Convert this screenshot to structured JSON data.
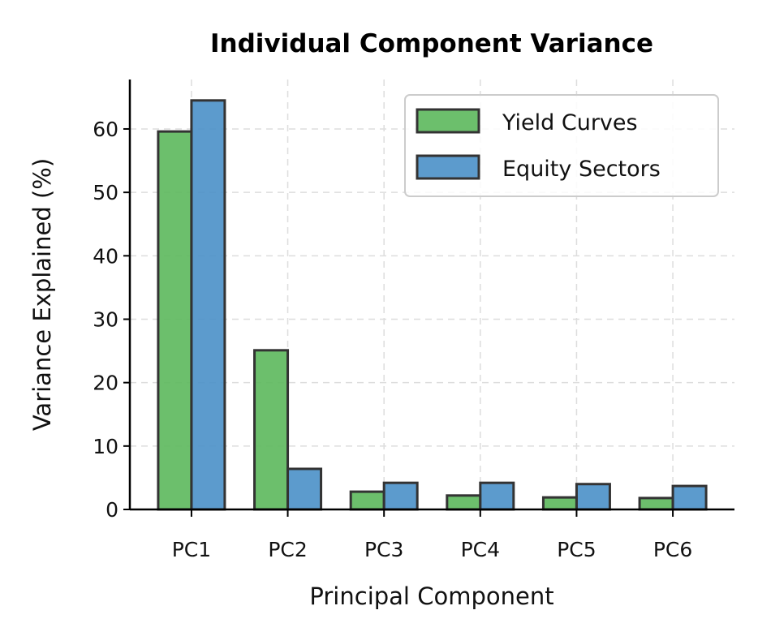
{
  "chart_data": {
    "type": "bar",
    "title": "Individual Component Variance",
    "xlabel": "Principal Component",
    "ylabel": "Variance Explained (%)",
    "categories": [
      "PC1",
      "PC2",
      "PC3",
      "PC4",
      "PC5",
      "PC6"
    ],
    "series": [
      {
        "name": "Yield Curves",
        "color": "#5cb85c",
        "values": [
          59.6,
          25.1,
          2.8,
          2.2,
          1.9,
          1.8
        ]
      },
      {
        "name": "Equity Sectors",
        "color": "#4a90c8",
        "values": [
          64.5,
          6.4,
          4.2,
          4.2,
          4.0,
          3.7
        ]
      }
    ],
    "yticks": [
      0,
      10,
      20,
      30,
      40,
      50,
      60
    ],
    "ylim": [
      0,
      67.8
    ],
    "grid": true,
    "legend_position": "top-right"
  }
}
